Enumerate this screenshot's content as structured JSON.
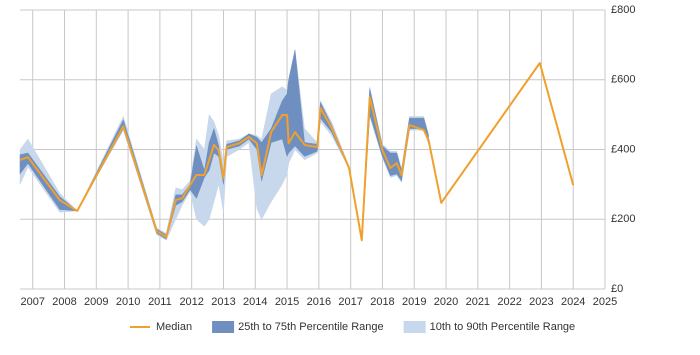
{
  "chart_data": {
    "type": "range-line",
    "x": [
      2006.6,
      2006.85,
      2007.85,
      2008.4,
      2009.85,
      2010.9,
      2011.2,
      2011.5,
      2011.7,
      2011.95,
      2012.15,
      2012.4,
      2012.55,
      2012.7,
      2012.85,
      2013.0,
      2013.1,
      2013.5,
      2013.8,
      2014.05,
      2014.2,
      2014.5,
      2014.85,
      2015.0,
      2015.05,
      2015.25,
      2015.55,
      2015.95,
      2016.05,
      2016.4,
      2016.95,
      2017.35,
      2017.6,
      2018.0,
      2018.25,
      2018.45,
      2018.6,
      2018.85,
      2019.3,
      2019.45,
      2019.85,
      2022.95,
      2024.0
    ],
    "series": [
      {
        "name": "Median",
        "color": "#f0a02c",
        "values": [
          370,
          378,
          255,
          224,
          467,
          166,
          149,
          255,
          260,
          298,
          327,
          327,
          370,
          413,
          398,
          318,
          407,
          418,
          436,
          418,
          327,
          450,
          499,
          499,
          418,
          450,
          413,
          407,
          519,
          462,
          347,
          140,
          550,
          398,
          347,
          361,
          327,
          470,
          456,
          427,
          247,
          648,
          298
        ]
      }
    ],
    "bands": [
      {
        "name": "25th to 75th Percentile Range",
        "color": "#6e8fbf",
        "low": [
          330,
          360,
          228,
          224,
          460,
          160,
          143,
          240,
          250,
          285,
          260,
          320,
          340,
          390,
          380,
          300,
          400,
          410,
          430,
          400,
          310,
          420,
          430,
          380,
          390,
          410,
          380,
          395,
          490,
          450,
          345,
          140,
          500,
          380,
          325,
          330,
          310,
          460,
          460,
          420,
          null,
          null,
          null
        ],
        "high": [
          385,
          390,
          265,
          224,
          485,
          172,
          155,
          270,
          270,
          300,
          410,
          340,
          420,
          460,
          410,
          330,
          415,
          425,
          445,
          435,
          420,
          460,
          540,
          560,
          600,
          685,
          420,
          415,
          535,
          470,
          350,
          140,
          575,
          410,
          390,
          390,
          340,
          490,
          490,
          440,
          null,
          null,
          null
        ]
      },
      {
        "name": "10th to 90th Percentile Range",
        "color": "#c7d8ec",
        "low": [
          300,
          350,
          220,
          224,
          455,
          155,
          140,
          200,
          240,
          280,
          200,
          180,
          200,
          250,
          300,
          220,
          380,
          400,
          420,
          230,
          200,
          250,
          300,
          330,
          360,
          400,
          370,
          390,
          480,
          440,
          345,
          140,
          495,
          375,
          320,
          325,
          305,
          455,
          455,
          415,
          null,
          null,
          null
        ],
        "high": [
          400,
          430,
          275,
          224,
          495,
          175,
          160,
          290,
          285,
          310,
          430,
          400,
          500,
          480,
          440,
          360,
          425,
          430,
          445,
          440,
          430,
          560,
          580,
          570,
          600,
          685,
          460,
          420,
          540,
          480,
          352,
          140,
          580,
          415,
          395,
          395,
          345,
          495,
          495,
          445,
          null,
          null,
          null
        ]
      }
    ],
    "xlim": [
      2006.6,
      2025.0
    ],
    "xticks": [
      2007,
      2008,
      2009,
      2010,
      2011,
      2012,
      2013,
      2014,
      2015,
      2016,
      2017,
      2018,
      2019,
      2020,
      2021,
      2022,
      2023,
      2024,
      2025
    ],
    "ylim": [
      0,
      800
    ],
    "yticks": [
      {
        "value": 0,
        "label": "£0"
      },
      {
        "value": 200,
        "label": "£200"
      },
      {
        "value": 400,
        "label": "£400"
      },
      {
        "value": 600,
        "label": "£600"
      },
      {
        "value": 800,
        "label": "£800"
      }
    ],
    "grid": true
  }
}
